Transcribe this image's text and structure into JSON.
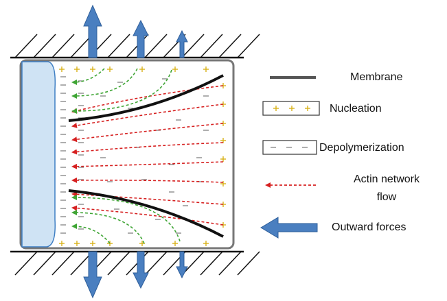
{
  "legend": {
    "membrane": "Membrane",
    "nucleation": "Nucleation",
    "depolymerization": "Depolymerization",
    "actin_flow": [
      "Actin network",
      "flow"
    ],
    "outward_forces": "Outward forces"
  }
}
